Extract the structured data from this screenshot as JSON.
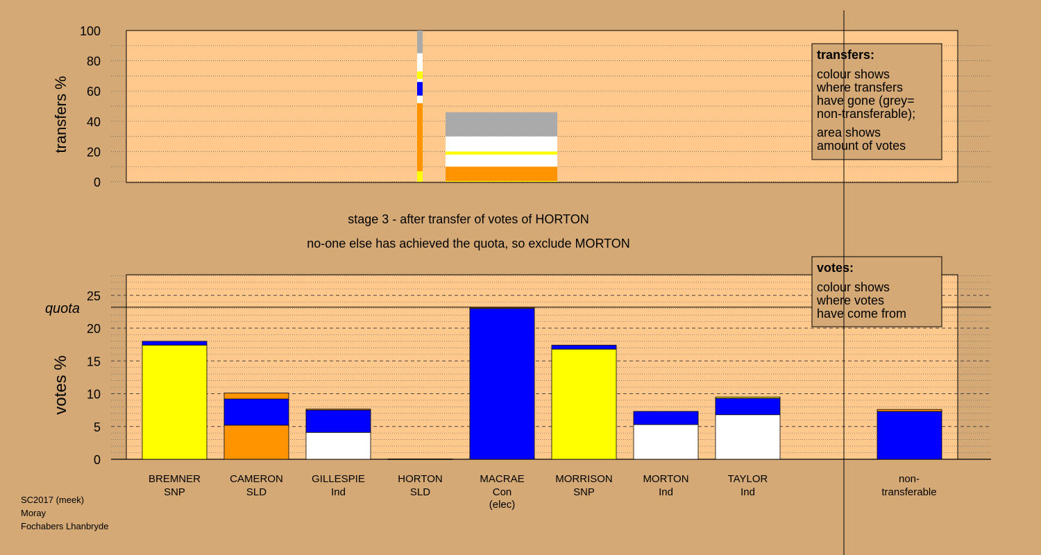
{
  "colors": {
    "background": "#d4a976",
    "panel": "#ffc88c",
    "legend_box": "#d4a976",
    "yellow": "#ffff00",
    "blue": "#0000ff",
    "orange": "#ff9400",
    "white": "#ffffff",
    "grey": "#aaaaaa"
  },
  "chart_data": [
    {
      "type": "bar",
      "ylabel": "transfers %",
      "ylim": [
        0,
        100
      ],
      "yticks": [
        0,
        20,
        40,
        60,
        80,
        100
      ],
      "grid": true,
      "legend": {
        "title": "transfers:",
        "lines": [
          "colour shows",
          "where transfers",
          "have gone (grey=",
          "non-transferable);",
          "area shows",
          "amount of votes"
        ]
      },
      "source_bar": {
        "candidate": "HORTON",
        "segments": [
          {
            "color": "yellow",
            "from": 0,
            "to": 7
          },
          {
            "color": "orange",
            "from": 7,
            "to": 52
          },
          {
            "color": "white",
            "from": 52,
            "to": 57
          },
          {
            "color": "blue",
            "from": 57,
            "to": 66
          },
          {
            "color": "white",
            "from": 66,
            "to": 68
          },
          {
            "color": "yellow",
            "from": 68,
            "to": 73
          },
          {
            "color": "white",
            "from": 73,
            "to": 85
          },
          {
            "color": "grey",
            "from": 85,
            "to": 100
          }
        ]
      },
      "transfer_block": {
        "width_percent": 46,
        "segments": [
          {
            "color": "yellow",
            "from": 0,
            "to": 0.5
          },
          {
            "color": "orange",
            "from": 0.5,
            "to": 10
          },
          {
            "color": "white",
            "from": 10,
            "to": 18
          },
          {
            "color": "yellow",
            "from": 18,
            "to": 20
          },
          {
            "color": "white",
            "from": 20,
            "to": 30
          },
          {
            "color": "grey",
            "from": 30,
            "to": 46
          }
        ]
      }
    },
    {
      "type": "bar",
      "ylabel": "votes %",
      "ylim": [
        0,
        28
      ],
      "yticks": [
        0,
        5,
        10,
        15,
        20,
        25
      ],
      "quota": 23.2,
      "quota_label": "quota",
      "grid": true,
      "legend": {
        "title": "votes:",
        "lines": [
          "colour shows",
          "where votes",
          "have come from"
        ]
      },
      "categories": [
        {
          "name": "BREMNER",
          "party": "SNP",
          "note": "",
          "segments": [
            {
              "color": "yellow",
              "value": 17.4
            },
            {
              "color": "blue",
              "value": 0.6
            }
          ]
        },
        {
          "name": "CAMERON",
          "party": "SLD",
          "note": "",
          "segments": [
            {
              "color": "orange",
              "value": 5.2
            },
            {
              "color": "blue",
              "value": 4.0
            },
            {
              "color": "orange",
              "value": 0.9
            }
          ]
        },
        {
          "name": "GILLESPIE",
          "party": "Ind",
          "note": "",
          "segments": [
            {
              "color": "white",
              "value": 4.1
            },
            {
              "color": "blue",
              "value": 3.4
            },
            {
              "color": "orange",
              "value": 0.15
            }
          ]
        },
        {
          "name": "HORTON",
          "party": "SLD",
          "note": "",
          "segments": [
            {
              "color": "orange",
              "value": 0.05
            }
          ]
        },
        {
          "name": "MACRAE",
          "party": "Con",
          "note": "(elec)",
          "segments": [
            {
              "color": "blue",
              "value": 23.0
            },
            {
              "color": "orange",
              "value": 0.15
            }
          ]
        },
        {
          "name": "MORRISON",
          "party": "SNP",
          "note": "",
          "segments": [
            {
              "color": "yellow",
              "value": 16.8
            },
            {
              "color": "blue",
              "value": 0.6
            }
          ]
        },
        {
          "name": "MORTON",
          "party": "Ind",
          "note": "",
          "segments": [
            {
              "color": "white",
              "value": 5.3
            },
            {
              "color": "blue",
              "value": 2.0
            }
          ]
        },
        {
          "name": "TAYLOR",
          "party": "Ind",
          "note": "",
          "segments": [
            {
              "color": "white",
              "value": 6.8
            },
            {
              "color": "blue",
              "value": 2.5
            },
            {
              "color": "yellow",
              "value": 0.2
            }
          ]
        }
      ],
      "nontransferable": {
        "name": "non-",
        "party": "transferable",
        "segments": [
          {
            "color": "blue",
            "value": 7.3
          },
          {
            "color": "orange",
            "value": 0.3
          }
        ]
      }
    }
  ],
  "title_lines": [
    "stage 3 - after transfer of votes of HORTON",
    "no-one else has achieved the quota, so exclude MORTON"
  ],
  "footer_lines": [
    "SC2017 (meek)",
    "Moray",
    "Fochabers Lhanbryde"
  ]
}
